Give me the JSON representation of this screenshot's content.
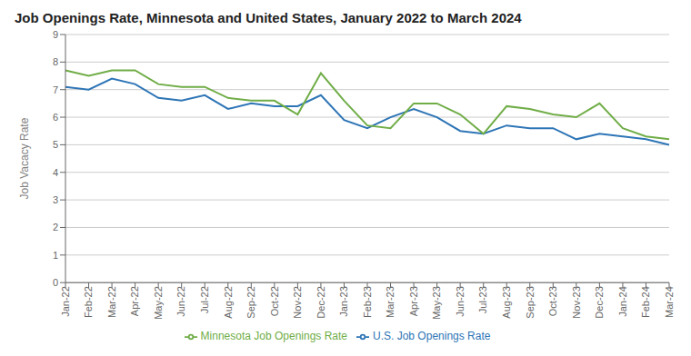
{
  "chart_data": {
    "type": "line",
    "title": "Job Openings Rate, Minnesota and United States, January 2022 to March 2024",
    "y_label": "Job Vacacy Rate",
    "categories": [
      "Jan-22",
      "Feb-22",
      "Mar-22",
      "Apr-22",
      "May-22",
      "Jun-22",
      "Jul-22",
      "Aug-22",
      "Sep-22",
      "Oct-22",
      "Nov-22",
      "Dec-22",
      "Jan-23",
      "Feb-23",
      "Mar-23",
      "Apr-23",
      "May-23",
      "Jun-23",
      "Jul-23",
      "Aug-23",
      "Sep-23",
      "Oct-23",
      "Nov-23",
      "Dec-23",
      "Jan-24",
      "Feb-24",
      "Mar-24"
    ],
    "series": [
      {
        "name": "U.S. Job Openings Rate",
        "color": "#2E75B6",
        "values": [
          7.1,
          7.0,
          7.4,
          7.2,
          6.7,
          6.6,
          6.8,
          6.3,
          6.5,
          6.4,
          6.4,
          6.8,
          5.9,
          5.6,
          6.0,
          6.3,
          6.0,
          5.5,
          5.4,
          5.7,
          5.6,
          5.6,
          5.2,
          5.4,
          5.3,
          5.2,
          5.0
        ]
      },
      {
        "name": "Minnesota Job Openings Rate",
        "color": "#70AD47",
        "values": [
          7.7,
          7.5,
          7.7,
          7.7,
          7.2,
          7.1,
          7.1,
          6.7,
          6.6,
          6.6,
          6.1,
          7.6,
          6.6,
          5.7,
          5.6,
          6.5,
          6.5,
          6.1,
          5.4,
          6.4,
          6.3,
          6.1,
          6.0,
          6.5,
          5.6,
          5.3,
          5.2
        ]
      }
    ],
    "ylim": [
      0,
      9
    ],
    "yticks": [
      0,
      1,
      2,
      3,
      4,
      5,
      6,
      7,
      8,
      9
    ],
    "grid": true,
    "legend": "bottom"
  }
}
